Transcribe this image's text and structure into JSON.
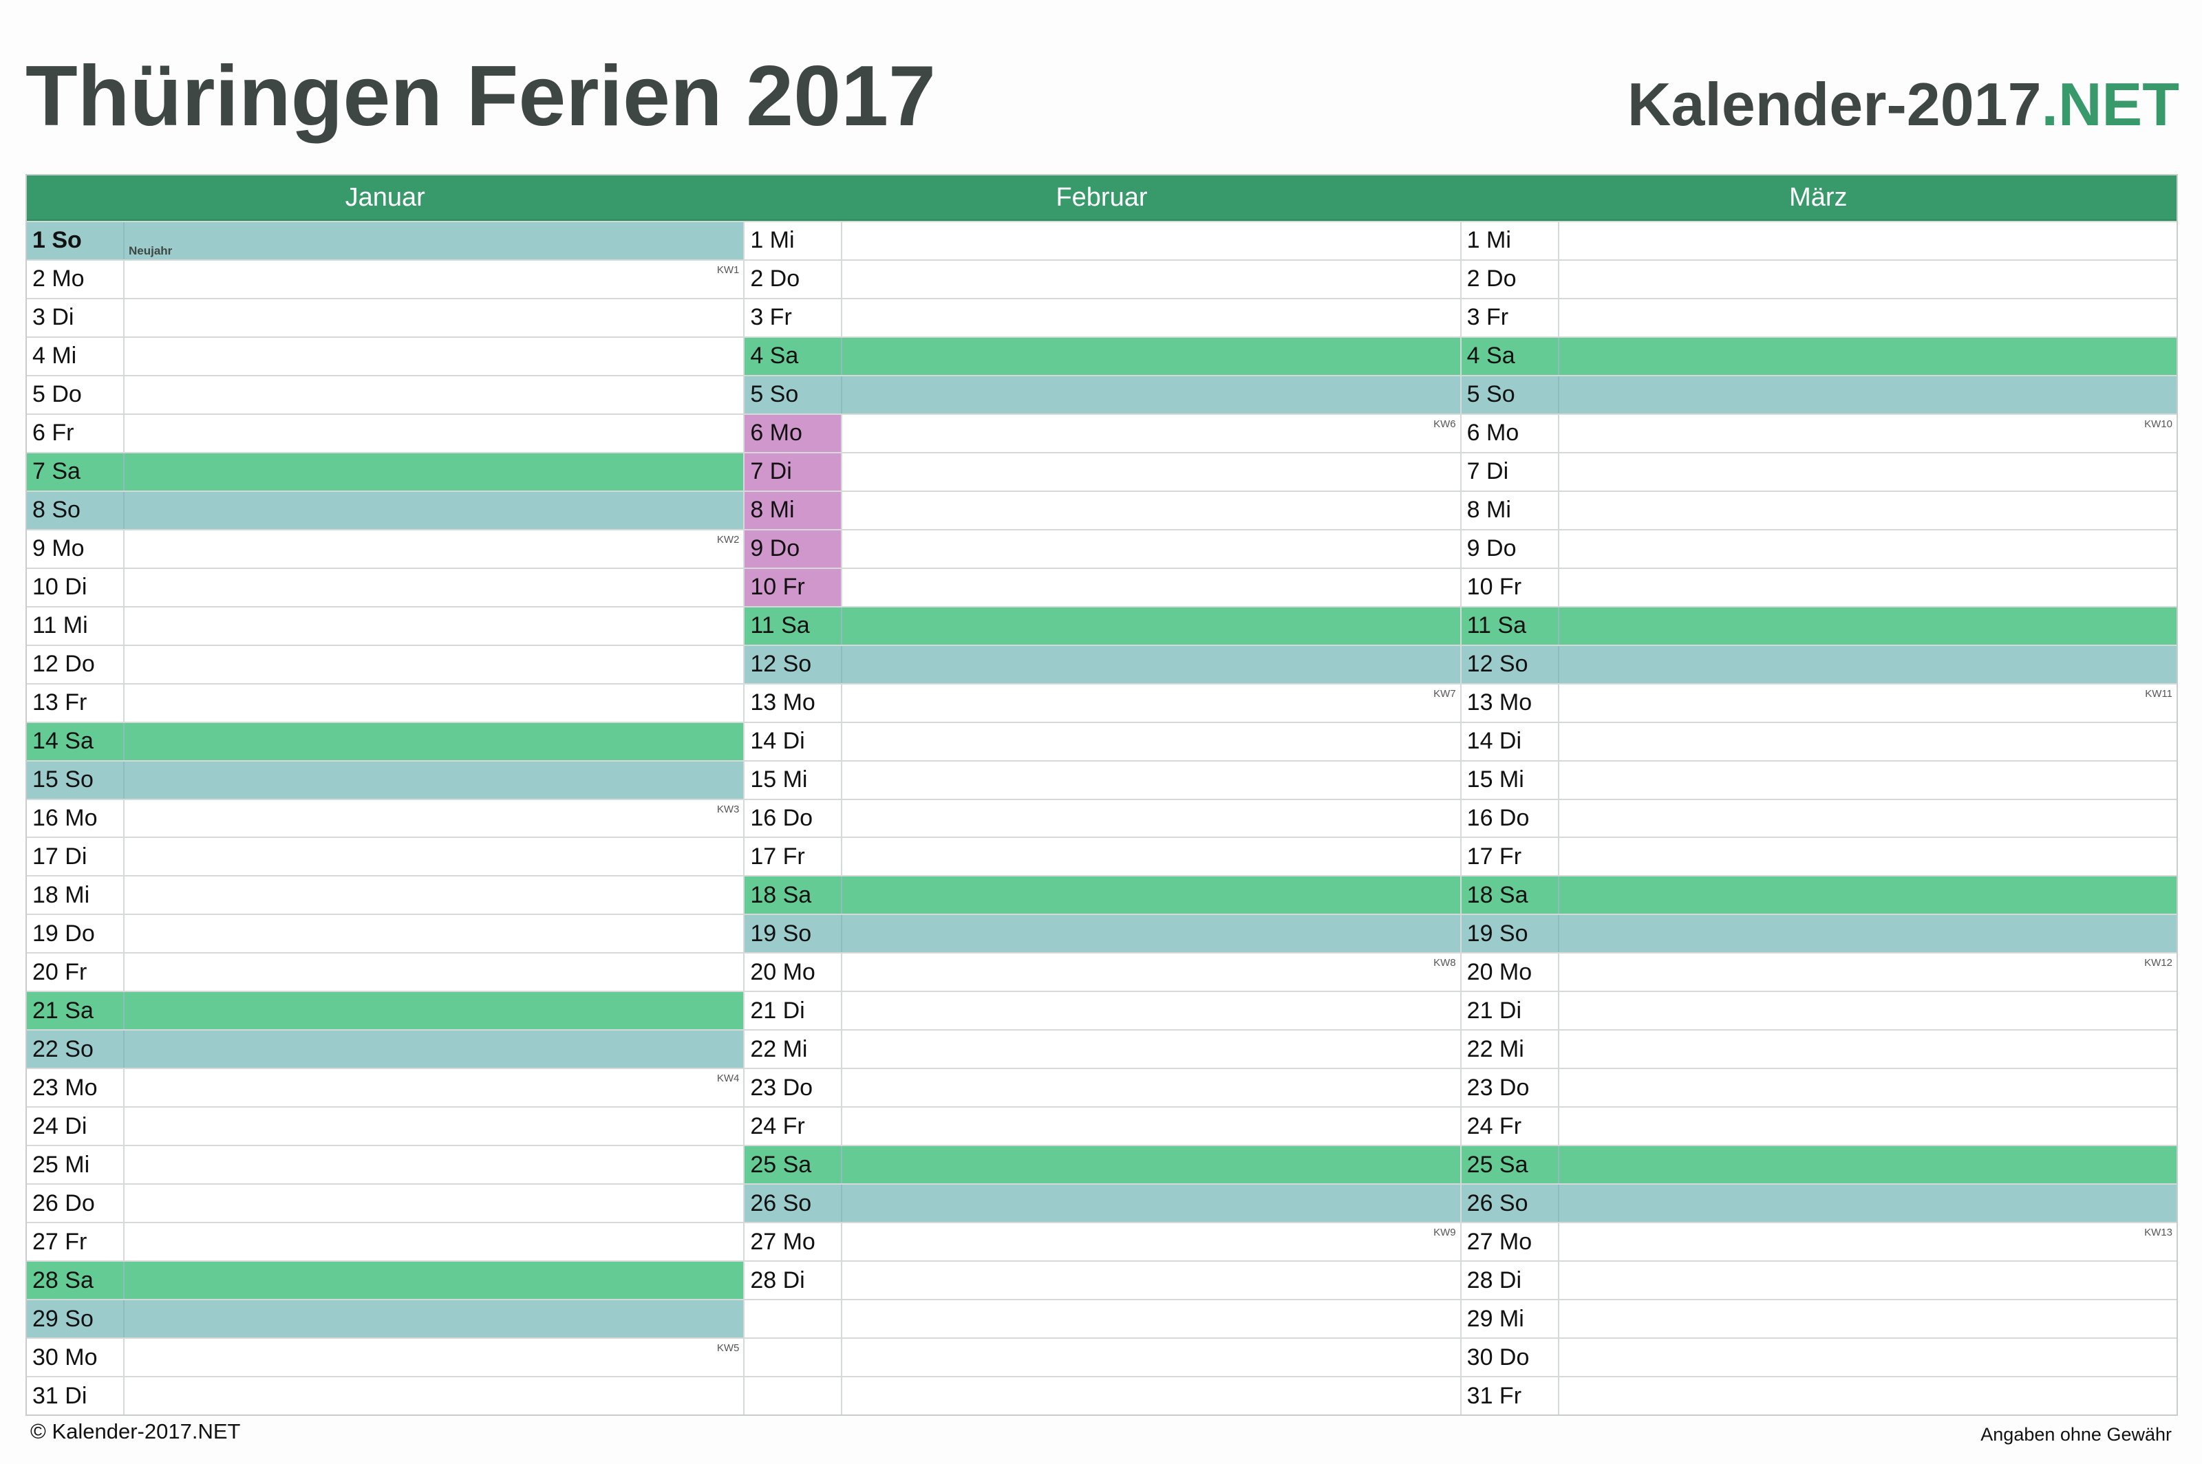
{
  "header": {
    "title": "Thüringen Ferien 2017",
    "brand_main": "Kalender-2017",
    "brand_accent": ".NET"
  },
  "colors": {
    "header_green": "#389a6b",
    "saturday": "#65cb95",
    "sunday": "#9ccbcb",
    "vacation": "#cf97cb",
    "title_text": "#3f4744"
  },
  "months": [
    {
      "name": "Januar",
      "days": [
        {
          "label": "1 So",
          "type": "sun",
          "holiday": "Neujahr"
        },
        {
          "label": "2 Mo",
          "kw": "KW1"
        },
        {
          "label": "3 Di"
        },
        {
          "label": "4 Mi"
        },
        {
          "label": "5 Do"
        },
        {
          "label": "6 Fr"
        },
        {
          "label": "7 Sa",
          "type": "sat"
        },
        {
          "label": "8 So",
          "type": "sun"
        },
        {
          "label": "9 Mo",
          "kw": "KW2"
        },
        {
          "label": "10 Di"
        },
        {
          "label": "11 Mi"
        },
        {
          "label": "12 Do"
        },
        {
          "label": "13 Fr"
        },
        {
          "label": "14 Sa",
          "type": "sat"
        },
        {
          "label": "15 So",
          "type": "sun"
        },
        {
          "label": "16 Mo",
          "kw": "KW3"
        },
        {
          "label": "17 Di"
        },
        {
          "label": "18 Mi"
        },
        {
          "label": "19 Do"
        },
        {
          "label": "20 Fr"
        },
        {
          "label": "21 Sa",
          "type": "sat"
        },
        {
          "label": "22 So",
          "type": "sun"
        },
        {
          "label": "23 Mo",
          "kw": "KW4"
        },
        {
          "label": "24 Di"
        },
        {
          "label": "25 Mi"
        },
        {
          "label": "26 Do"
        },
        {
          "label": "27 Fr"
        },
        {
          "label": "28 Sa",
          "type": "sat"
        },
        {
          "label": "29 So",
          "type": "sun"
        },
        {
          "label": "30 Mo",
          "kw": "KW5"
        },
        {
          "label": "31 Di"
        }
      ]
    },
    {
      "name": "Februar",
      "days": [
        {
          "label": "1 Mi"
        },
        {
          "label": "2 Do"
        },
        {
          "label": "3 Fr"
        },
        {
          "label": "4 Sa",
          "type": "sat"
        },
        {
          "label": "5 So",
          "type": "sun"
        },
        {
          "label": "6 Mo",
          "kw": "KW6",
          "vacation": true
        },
        {
          "label": "7 Di",
          "vacation": true
        },
        {
          "label": "8 Mi",
          "vacation": true
        },
        {
          "label": "9 Do",
          "vacation": true
        },
        {
          "label": "10 Fr",
          "vacation": true
        },
        {
          "label": "11 Sa",
          "type": "sat"
        },
        {
          "label": "12 So",
          "type": "sun"
        },
        {
          "label": "13 Mo",
          "kw": "KW7"
        },
        {
          "label": "14 Di"
        },
        {
          "label": "15 Mi"
        },
        {
          "label": "16 Do"
        },
        {
          "label": "17 Fr"
        },
        {
          "label": "18 Sa",
          "type": "sat"
        },
        {
          "label": "19 So",
          "type": "sun"
        },
        {
          "label": "20 Mo",
          "kw": "KW8"
        },
        {
          "label": "21 Di"
        },
        {
          "label": "22 Mi"
        },
        {
          "label": "23 Do"
        },
        {
          "label": "24 Fr"
        },
        {
          "label": "25 Sa",
          "type": "sat"
        },
        {
          "label": "26 So",
          "type": "sun"
        },
        {
          "label": "27 Mo",
          "kw": "KW9"
        },
        {
          "label": "28 Di"
        },
        {
          "label": ""
        },
        {
          "label": ""
        },
        {
          "label": ""
        }
      ]
    },
    {
      "name": "März",
      "days": [
        {
          "label": "1 Mi"
        },
        {
          "label": "2 Do"
        },
        {
          "label": "3 Fr"
        },
        {
          "label": "4 Sa",
          "type": "sat"
        },
        {
          "label": "5 So",
          "type": "sun"
        },
        {
          "label": "6 Mo",
          "kw": "KW10"
        },
        {
          "label": "7 Di"
        },
        {
          "label": "8 Mi"
        },
        {
          "label": "9 Do"
        },
        {
          "label": "10 Fr"
        },
        {
          "label": "11 Sa",
          "type": "sat"
        },
        {
          "label": "12 So",
          "type": "sun"
        },
        {
          "label": "13 Mo",
          "kw": "KW11"
        },
        {
          "label": "14 Di"
        },
        {
          "label": "15 Mi"
        },
        {
          "label": "16 Do"
        },
        {
          "label": "17 Fr"
        },
        {
          "label": "18 Sa",
          "type": "sat"
        },
        {
          "label": "19 So",
          "type": "sun"
        },
        {
          "label": "20 Mo",
          "kw": "KW12"
        },
        {
          "label": "21 Di"
        },
        {
          "label": "22 Mi"
        },
        {
          "label": "23 Do"
        },
        {
          "label": "24 Fr"
        },
        {
          "label": "25 Sa",
          "type": "sat"
        },
        {
          "label": "26 So",
          "type": "sun"
        },
        {
          "label": "27 Mo",
          "kw": "KW13"
        },
        {
          "label": "28 Di"
        },
        {
          "label": "29 Mi"
        },
        {
          "label": "30 Do"
        },
        {
          "label": "31 Fr"
        }
      ]
    }
  ],
  "footer": {
    "copyright": "© Kalender-2017.NET",
    "disclaimer": "Angaben ohne Gewähr"
  }
}
